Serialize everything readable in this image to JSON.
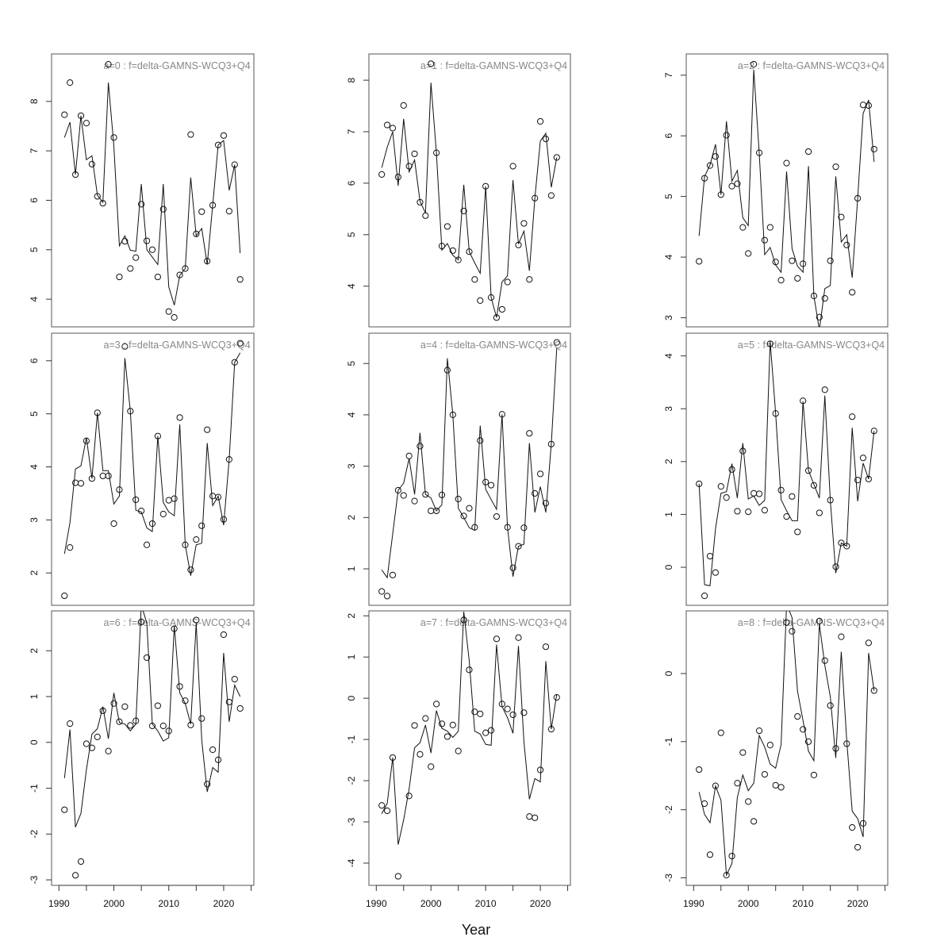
{
  "xlabel": "Year",
  "chart_data": {
    "type": "line",
    "x": [
      1991,
      1992,
      1993,
      1994,
      1995,
      1996,
      1997,
      1998,
      1999,
      2000,
      2001,
      2002,
      2003,
      2004,
      2005,
      2006,
      2007,
      2008,
      2009,
      2010,
      2011,
      2012,
      2013,
      2014,
      2015,
      2016,
      2017,
      2018,
      2019,
      2020,
      2021,
      2022,
      2023
    ],
    "xlim": [
      1988.65,
      2025.5
    ],
    "xticks": [
      1990,
      2000,
      2010,
      2020
    ],
    "xlabel": "Year",
    "panels": [
      {
        "title": "a=0  :  f=delta-GAMNS-WCQ3+Q4",
        "ylim": [
          3.44,
          8.96
        ],
        "yticks": [
          4,
          5,
          6,
          7,
          8
        ],
        "obs": [
          7.73,
          8.38,
          6.52,
          7.71,
          7.56,
          6.73,
          6.08,
          5.94,
          8.75,
          7.27,
          4.45,
          5.17,
          4.62,
          4.84,
          5.92,
          5.18,
          5.0,
          4.45,
          5.82,
          3.75,
          3.63,
          4.49,
          4.62,
          7.33,
          5.32,
          5.77,
          4.77,
          5.9,
          7.12,
          7.31,
          5.78,
          6.72,
          4.4
        ],
        "fit": [
          7.27,
          7.58,
          6.52,
          7.71,
          6.82,
          6.9,
          6.1,
          5.96,
          8.38,
          7.1,
          5.08,
          5.28,
          4.99,
          4.97,
          6.33,
          5.0,
          4.85,
          4.7,
          6.33,
          4.25,
          3.88,
          4.48,
          4.62,
          6.46,
          5.28,
          5.43,
          4.7,
          5.9,
          7.12,
          7.21,
          6.2,
          6.72,
          4.93
        ]
      },
      {
        "title": "a=3  :  f=delta-GAMNS-WCQ3+Q4",
        "ylim": [
          1.39,
          6.52
        ],
        "yticks": [
          2,
          3,
          4,
          5,
          6
        ],
        "obs": [
          1.57,
          2.48,
          3.7,
          3.69,
          4.49,
          3.78,
          5.02,
          3.83,
          3.83,
          2.93,
          3.57,
          6.27,
          5.05,
          3.38,
          3.17,
          2.53,
          2.93,
          4.58,
          3.11,
          3.37,
          3.4,
          4.93,
          2.53,
          2.06,
          2.63,
          2.89,
          4.7,
          3.45,
          3.43,
          3.01,
          4.14,
          5.97,
          6.33
        ],
        "fit": [
          2.36,
          2.95,
          3.96,
          4.02,
          4.55,
          3.78,
          5.02,
          3.93,
          3.93,
          3.3,
          3.45,
          6.05,
          5.05,
          3.18,
          3.15,
          2.85,
          2.78,
          4.58,
          3.33,
          3.15,
          3.08,
          4.8,
          2.53,
          1.95,
          2.53,
          2.56,
          4.45,
          3.27,
          3.45,
          2.9,
          4.14,
          5.97,
          6.15
        ]
      },
      {
        "title": "a=6  :  f=delta-GAMNS-WCQ3+Q4",
        "ylim": [
          -3.12,
          2.87
        ],
        "yticks": [
          -3,
          -2,
          -1,
          0,
          1,
          2
        ],
        "obs": [
          -1.47,
          0.41,
          -2.9,
          -2.6,
          -0.03,
          -0.12,
          0.12,
          0.69,
          -0.19,
          0.85,
          0.45,
          0.78,
          0.37,
          0.47,
          2.63,
          1.85,
          0.36,
          0.8,
          0.36,
          0.25,
          2.48,
          1.22,
          0.91,
          0.38,
          2.67,
          0.52,
          -0.91,
          -0.16,
          -0.38,
          2.35,
          0.88,
          1.38,
          0.74
        ],
        "fit": [
          -0.78,
          0.28,
          -1.85,
          -1.55,
          -0.6,
          0.18,
          0.3,
          0.78,
          0.08,
          1.08,
          0.43,
          0.4,
          0.25,
          0.4,
          3.0,
          2.6,
          0.4,
          0.25,
          0.03,
          0.1,
          2.55,
          1.08,
          0.85,
          0.4,
          2.6,
          0.05,
          -1.08,
          -0.55,
          -0.65,
          1.95,
          0.45,
          1.25,
          1.0
        ]
      },
      {
        "title": "a=1  :  f=delta-GAMNS-WCQ3+Q4",
        "ylim": [
          3.21,
          8.51
        ],
        "yticks": [
          4,
          5,
          6,
          7,
          8
        ],
        "obs": [
          6.17,
          7.13,
          7.07,
          6.12,
          7.51,
          6.33,
          6.57,
          5.63,
          5.37,
          8.32,
          6.59,
          4.78,
          5.16,
          4.69,
          4.51,
          5.46,
          4.67,
          4.13,
          3.72,
          5.94,
          3.78,
          3.39,
          3.55,
          4.08,
          6.33,
          4.8,
          5.22,
          4.13,
          5.71,
          7.2,
          6.86,
          5.76,
          6.5
        ],
        "fit": [
          6.3,
          6.7,
          7.0,
          5.95,
          7.25,
          6.22,
          6.45,
          5.65,
          5.42,
          7.95,
          6.59,
          4.7,
          4.83,
          4.6,
          4.51,
          5.97,
          4.67,
          4.45,
          4.25,
          5.94,
          3.78,
          3.39,
          4.08,
          4.2,
          6.06,
          4.82,
          5.07,
          4.3,
          5.71,
          6.82,
          6.97,
          5.92,
          6.5
        ]
      },
      {
        "title": "a=4  :  f=delta-GAMNS-WCQ3+Q4",
        "ylim": [
          0.29,
          5.59
        ],
        "yticks": [
          1,
          2,
          3,
          4,
          5
        ],
        "obs": [
          0.56,
          0.47,
          0.88,
          2.53,
          2.43,
          3.2,
          2.32,
          3.39,
          2.45,
          2.13,
          2.13,
          2.44,
          4.87,
          4.0,
          2.36,
          2.03,
          2.18,
          1.81,
          3.5,
          2.69,
          2.63,
          2.02,
          4.01,
          1.81,
          1.02,
          1.44,
          1.8,
          3.64,
          2.47,
          2.85,
          2.28,
          3.43,
          5.41
        ],
        "fit": [
          0.98,
          0.83,
          1.68,
          2.53,
          2.67,
          3.15,
          2.45,
          3.65,
          2.45,
          2.38,
          2.13,
          2.25,
          5.1,
          4.0,
          2.18,
          2.0,
          1.8,
          1.75,
          3.79,
          2.55,
          2.35,
          2.16,
          4.01,
          1.81,
          0.85,
          1.44,
          1.48,
          3.45,
          2.1,
          2.6,
          2.1,
          3.43,
          5.3
        ]
      },
      {
        "title": "a=7  :  f=delta-GAMNS-WCQ3+Q4",
        "ylim": [
          -4.54,
          2.12
        ],
        "yticks": [
          -4,
          -3,
          -2,
          -1,
          0,
          1,
          2
        ],
        "obs": [
          -2.6,
          -2.73,
          -1.44,
          -4.32,
          null,
          -2.37,
          -0.66,
          -1.36,
          -0.49,
          -1.66,
          -0.14,
          -0.62,
          -0.93,
          -0.65,
          -1.28,
          1.9,
          0.69,
          -0.33,
          -0.38,
          -0.84,
          -0.78,
          1.44,
          -0.14,
          -0.26,
          -0.4,
          1.47,
          -0.35,
          -2.87,
          -2.9,
          -1.74,
          1.25,
          -0.75,
          0.02
        ],
        "fit": [
          -2.8,
          -2.55,
          -1.44,
          -3.55,
          -2.95,
          -2.2,
          -1.2,
          -1.08,
          -0.65,
          -1.33,
          -0.3,
          -0.73,
          -0.8,
          -0.95,
          -0.8,
          2.1,
          0.9,
          -0.8,
          -0.87,
          -1.12,
          -1.14,
          1.3,
          -0.2,
          -0.47,
          -0.85,
          1.27,
          -1.05,
          -2.45,
          -1.95,
          -2.03,
          0.9,
          -0.75,
          0.1
        ]
      },
      {
        "title": "a=2  :  f=delta-GAMNS-WCQ3+Q4",
        "ylim": [
          2.85,
          7.35
        ],
        "yticks": [
          3,
          4,
          5,
          6,
          7
        ],
        "obs": [
          3.93,
          5.3,
          5.51,
          5.66,
          5.03,
          6.01,
          5.17,
          5.21,
          4.49,
          4.06,
          7.18,
          5.72,
          4.28,
          4.49,
          3.92,
          3.62,
          5.55,
          3.94,
          3.65,
          3.89,
          5.74,
          3.36,
          3.01,
          3.32,
          3.94,
          5.49,
          4.66,
          4.2,
          3.42,
          4.97,
          6.51,
          6.5,
          5.78
        ],
        "fit": [
          4.35,
          5.33,
          5.52,
          5.86,
          5.03,
          6.24,
          5.25,
          5.43,
          4.65,
          4.52,
          7.09,
          5.72,
          4.04,
          4.16,
          3.87,
          3.75,
          5.41,
          4.14,
          3.85,
          3.75,
          5.5,
          3.36,
          2.8,
          3.48,
          3.53,
          5.33,
          4.25,
          4.37,
          3.66,
          4.97,
          6.37,
          6.59,
          5.57
        ]
      },
      {
        "title": "a=5  :  f=delta-GAMNS-WCQ3+Q4",
        "ylim": [
          -0.72,
          4.43
        ],
        "yticks": [
          0,
          1,
          2,
          3,
          4
        ],
        "obs": [
          1.58,
          -0.54,
          0.21,
          -0.1,
          1.53,
          1.32,
          1.85,
          1.06,
          2.2,
          1.05,
          1.4,
          1.39,
          1.08,
          4.23,
          2.91,
          1.46,
          0.96,
          1.34,
          0.67,
          3.15,
          1.83,
          1.55,
          1.03,
          3.36,
          1.27,
          0.01,
          0.46,
          0.4,
          2.85,
          1.65,
          2.07,
          1.67,
          2.58
        ],
        "fit": [
          1.58,
          -0.33,
          -0.35,
          0.73,
          1.4,
          1.43,
          1.96,
          1.31,
          2.35,
          1.29,
          1.35,
          1.17,
          1.27,
          4.28,
          2.91,
          1.28,
          1.07,
          0.88,
          0.88,
          3.14,
          1.83,
          1.57,
          1.31,
          3.25,
          1.27,
          -0.11,
          0.46,
          0.4,
          2.64,
          1.25,
          1.97,
          1.67,
          2.58
        ]
      },
      {
        "title": "a=8  :  f=delta-GAMNS-WCQ3+Q4",
        "ylim": [
          -3.11,
          0.92
        ],
        "yticks": [
          -3,
          -2,
          -1,
          0
        ],
        "obs": [
          -1.41,
          -1.91,
          -2.66,
          -1.65,
          -0.87,
          -2.96,
          -2.68,
          -1.61,
          -1.16,
          -1.88,
          -2.17,
          -0.84,
          -1.48,
          -1.05,
          -1.64,
          -1.67,
          0.75,
          0.62,
          -0.63,
          -0.82,
          -1.0,
          -1.49,
          0.77,
          0.19,
          -0.47,
          -1.1,
          0.54,
          -1.03,
          -2.26,
          -2.55,
          -2.2,
          0.45,
          -0.25
        ],
        "fit": [
          -1.74,
          -2.07,
          -2.19,
          -1.65,
          -1.86,
          -2.96,
          -2.79,
          -1.82,
          -1.49,
          -1.72,
          -1.61,
          -0.91,
          -1.08,
          -1.33,
          -1.39,
          -1.04,
          1.02,
          0.82,
          -0.26,
          -0.69,
          -1.14,
          -1.28,
          0.73,
          0.12,
          -0.34,
          -1.24,
          0.32,
          -0.98,
          -2.02,
          -2.13,
          -2.4,
          0.3,
          -0.25
        ]
      }
    ]
  }
}
